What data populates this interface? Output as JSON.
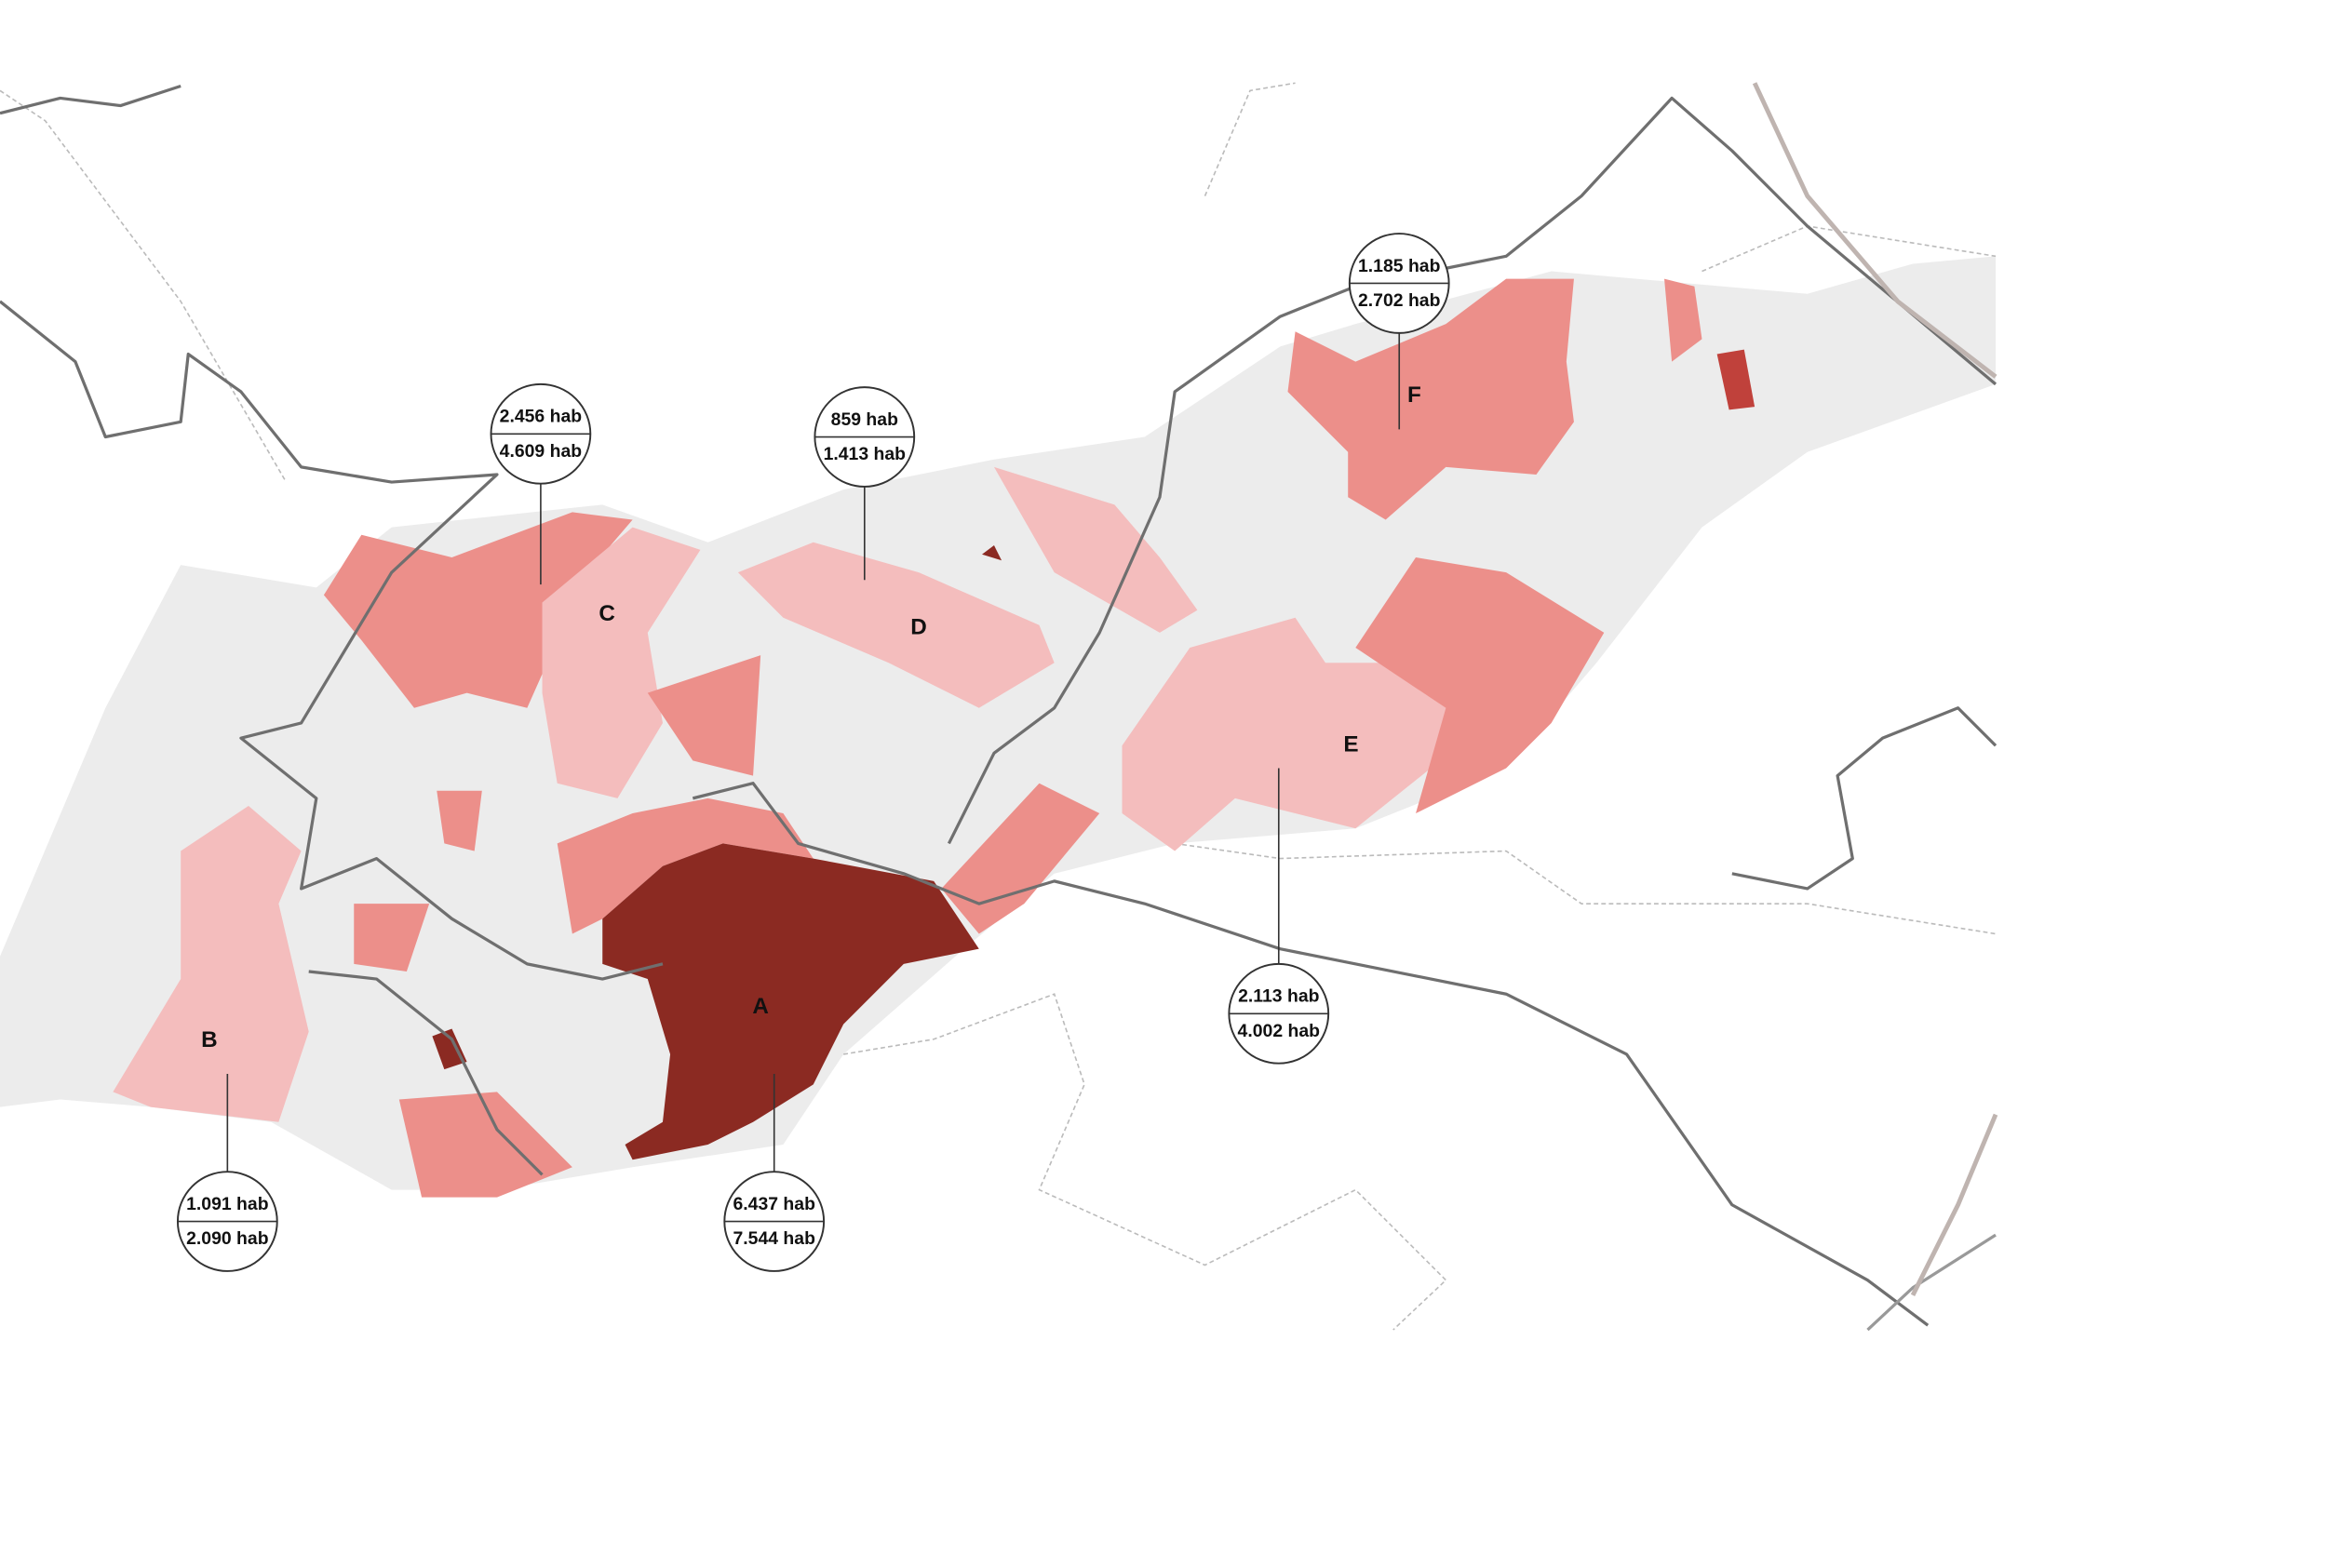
{
  "zones": [
    {
      "letter": "A",
      "top": "6.437 hab",
      "bottom": "7.544 hab"
    },
    {
      "letter": "B",
      "top": "1.091 hab",
      "bottom": "2.090 hab"
    },
    {
      "letter": "C",
      "top": "2.456 hab",
      "bottom": "4.609 hab"
    },
    {
      "letter": "D",
      "top": "859 hab",
      "bottom": "1.413 hab"
    },
    {
      "letter": "E",
      "top": "2.113 hab",
      "bottom": "4.002 hab"
    },
    {
      "letter": "F",
      "top": "1.185 hab",
      "bottom": "2.702 hab"
    }
  ]
}
